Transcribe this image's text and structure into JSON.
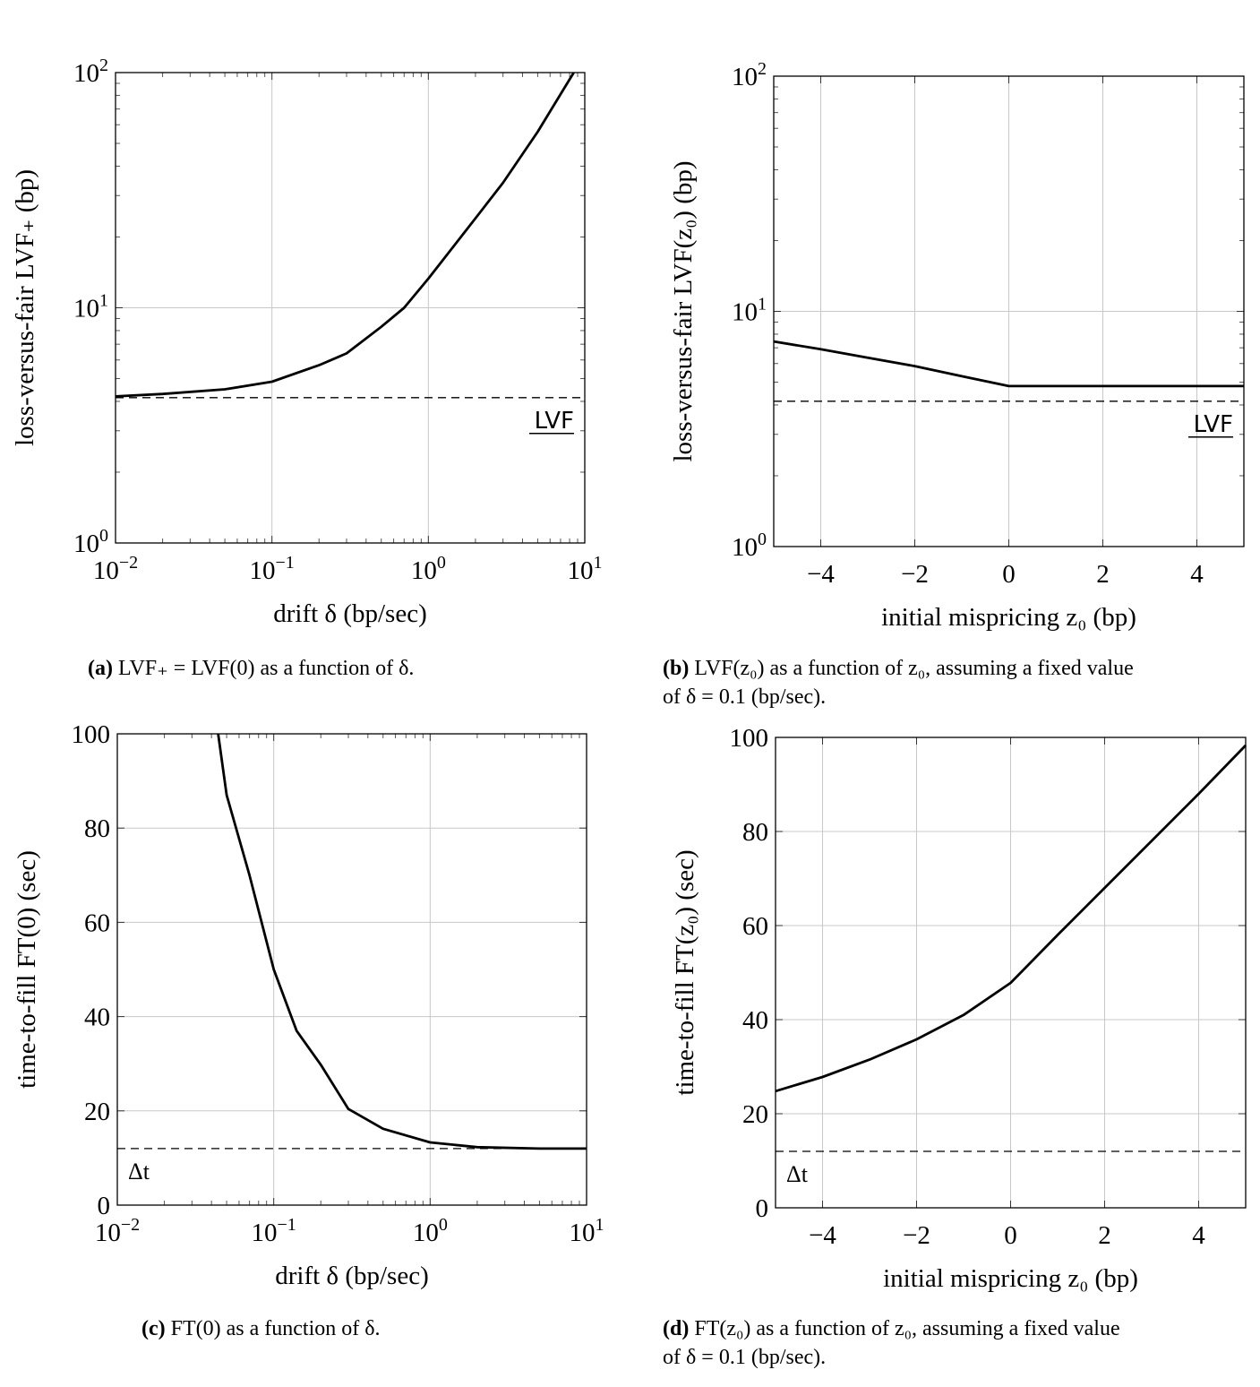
{
  "chart_data": [
    {
      "id": "a",
      "type": "line",
      "xscale": "log",
      "yscale": "log",
      "xlim": [
        0.01,
        10
      ],
      "ylim": [
        1,
        100
      ],
      "xticks": [
        0.01,
        0.1,
        1,
        10
      ],
      "xtick_labels": [
        "10^-2",
        "10^-1",
        "10^0",
        "10^1"
      ],
      "yticks": [
        1,
        10,
        100
      ],
      "ytick_labels": [
        "10^0",
        "10^1",
        "10^2"
      ],
      "xlabel": "drift δ (bp/sec)",
      "ylabel": "loss-versus-fair LVF₊ (bp)",
      "grid": true,
      "series": [
        {
          "name": "LVF₊",
          "style": "solid",
          "x": [
            0.01,
            0.02,
            0.05,
            0.1,
            0.2,
            0.3,
            0.5,
            0.7,
            1,
            2,
            3,
            5,
            8.5
          ],
          "y": [
            4.2,
            4.3,
            4.5,
            4.85,
            5.7,
            6.4,
            8.3,
            10,
            13.3,
            24,
            34,
            56,
            100
          ]
        },
        {
          "name": "LVF",
          "style": "dashed",
          "x": [
            0.01,
            10
          ],
          "y": [
            4.15,
            4.15
          ]
        }
      ],
      "annotation": {
        "text": "LVF",
        "underline": true,
        "position": "bottom-right"
      },
      "caption": {
        "label": "(a)",
        "text": "LVF₊ = LVF(0) as a function of δ."
      }
    },
    {
      "id": "b",
      "type": "line",
      "xscale": "linear",
      "yscale": "log",
      "xlim": [
        -5,
        5
      ],
      "ylim": [
        1,
        100
      ],
      "xticks": [
        -4,
        -2,
        0,
        2,
        4
      ],
      "xtick_labels": [
        "−4",
        "−2",
        "0",
        "2",
        "4"
      ],
      "yticks": [
        1,
        10,
        100
      ],
      "ytick_labels": [
        "10^0",
        "10^1",
        "10^2"
      ],
      "xlabel": "initial mispricing z₀ (bp)",
      "ylabel": "loss-versus-fair LVF(z₀) (bp)",
      "grid": true,
      "series": [
        {
          "name": "LVF(z₀)",
          "style": "solid",
          "x": [
            -5,
            -4,
            -3,
            -2,
            -1,
            0,
            5
          ],
          "y": [
            7.45,
            6.9,
            6.35,
            5.85,
            5.3,
            4.81,
            4.81
          ]
        },
        {
          "name": "LVF",
          "style": "dashed",
          "x": [
            -5,
            5
          ],
          "y": [
            4.15,
            4.15
          ]
        }
      ],
      "annotation": {
        "text": "LVF",
        "underline": true,
        "position": "bottom-right"
      },
      "caption": {
        "label": "(b)",
        "text": "LVF(z₀) as a function of z₀, assuming a fixed value",
        "text2": "of δ = 0.1 (bp/sec)."
      }
    },
    {
      "id": "c",
      "type": "line",
      "xscale": "log",
      "yscale": "linear",
      "xlim": [
        0.01,
        10
      ],
      "ylim": [
        0,
        100
      ],
      "xticks": [
        0.01,
        0.1,
        1,
        10
      ],
      "xtick_labels": [
        "10^-2",
        "10^-1",
        "10^0",
        "10^1"
      ],
      "yticks": [
        0,
        20,
        40,
        60,
        80,
        100
      ],
      "ytick_labels": [
        "0",
        "20",
        "40",
        "60",
        "80",
        "100"
      ],
      "xlabel": "drift δ (bp/sec)",
      "ylabel": "time-to-fill FT(0) (sec)",
      "grid": true,
      "series": [
        {
          "name": "FT(0)",
          "style": "solid",
          "x": [
            0.0441,
            0.05,
            0.07,
            0.1,
            0.14,
            0.2,
            0.3,
            0.5,
            1,
            2,
            5,
            10
          ],
          "y": [
            100,
            87,
            70,
            50,
            37,
            29.8,
            20.4,
            16.2,
            13.3,
            12.3,
            12,
            12
          ]
        },
        {
          "name": "Δt",
          "style": "dashed",
          "x": [
            0.01,
            10
          ],
          "y": [
            12,
            12
          ]
        }
      ],
      "annotation": {
        "text": "Δt",
        "underline": false,
        "position": "bottom-left"
      },
      "caption": {
        "label": "(c)",
        "text": "FT(0) as a function of δ."
      }
    },
    {
      "id": "d",
      "type": "line",
      "xscale": "linear",
      "yscale": "linear",
      "xlim": [
        -5,
        5
      ],
      "ylim": [
        0,
        100
      ],
      "xticks": [
        -4,
        -2,
        0,
        2,
        4
      ],
      "xtick_labels": [
        "−4",
        "−2",
        "0",
        "2",
        "4"
      ],
      "yticks": [
        0,
        20,
        40,
        60,
        80,
        100
      ],
      "ytick_labels": [
        "0",
        "20",
        "40",
        "60",
        "80",
        "100"
      ],
      "xlabel": "initial mispricing z₀ (bp)",
      "ylabel": "time-to-fill FT(z₀) (sec)",
      "grid": true,
      "series": [
        {
          "name": "FT(z₀)",
          "style": "solid",
          "x": [
            -5,
            -4,
            -3,
            -2,
            -1,
            0,
            1,
            2,
            3,
            4,
            5
          ],
          "y": [
            24.8,
            27.8,
            31.5,
            35.8,
            41,
            47.8,
            58,
            68,
            78,
            88,
            98.3
          ]
        },
        {
          "name": "Δt",
          "style": "dashed",
          "x": [
            -5,
            5
          ],
          "y": [
            12,
            12
          ]
        }
      ],
      "annotation": {
        "text": "Δt",
        "underline": false,
        "position": "bottom-left"
      },
      "caption": {
        "label": "(d)",
        "text": "FT(z₀) as a function of z₀, assuming a fixed value",
        "text2": "of δ = 0.1 (bp/sec)."
      }
    }
  ]
}
